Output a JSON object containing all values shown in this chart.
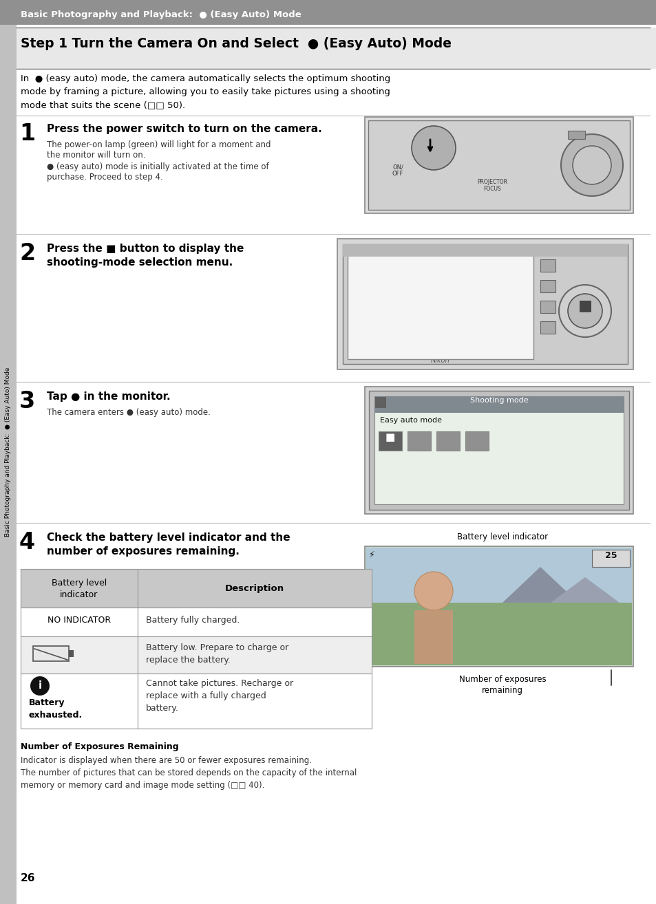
{
  "bg_color": "#ffffff",
  "page_bg": "#f0f0f0",
  "header_bg": "#888888",
  "header_text_color": "#ffffff",
  "header_text": "Basic Photography and Playback:  ● (Easy Auto) Mode",
  "title_text": "Step 1 Turn the Camera On and Select  ● (Easy Auto) Mode",
  "intro_lines": [
    "In  ● (easy auto) mode, the camera automatically selects the optimum shooting",
    "mode by framing a picture, allowing you to easily take pictures using a shooting",
    "mode that suits the scene (□□ 50)."
  ],
  "step1_num": "1",
  "step1_title": "Press the power switch to turn on the camera.",
  "step1_body1a": "The power-on lamp (green) will light for a moment and",
  "step1_body1b": "the monitor will turn on.",
  "step1_body2a": "● (easy auto) mode is initially activated at the time of",
  "step1_body2b": "purchase. Proceed to step 4.",
  "step2_num": "2",
  "step2_title_line1": "Press the ■ button to display the",
  "step2_title_line2": "shooting-mode selection menu.",
  "step3_num": "3",
  "step3_title": "Tap ● in the monitor.",
  "step3_body": "The camera enters ● (easy auto) mode.",
  "step4_num": "4",
  "step4_title_line1": "Check the battery level indicator and the",
  "step4_title_line2": "number of exposures remaining.",
  "battery_label": "Battery level indicator",
  "table_col1_header": "Battery level\nindicator",
  "table_col2_header": "Description",
  "table_row1_col1": "NO INDICATOR",
  "table_row1_col2": "Battery fully charged.",
  "table_row2_col2a": "Battery low. Prepare to charge or",
  "table_row2_col2b": "replace the battery.",
  "table_row3_col1b": "Battery",
  "table_row3_col1c": "exhausted.",
  "table_row3_col2a": "Cannot take pictures. Recharge or",
  "table_row3_col2b": "replace with a fully charged",
  "table_row3_col2c": "battery.",
  "exposures_label_line1": "Number of exposures",
  "exposures_label_line2": "remaining",
  "note_heading": "Number of Exposures Remaining",
  "note_line1": "Indicator is displayed when there are 50 or fewer exposures remaining.",
  "note_line2": "The number of pictures that can be stored depends on the capacity of the internal",
  "note_line3": "memory or memory card and image mode setting (□□ 40).",
  "page_num": "26",
  "sidebar_text": "Basic Photography and Playback:  ● (Easy Auto) Mode",
  "header_bg_color": "#909090",
  "title_bg_color": "#e8e8e8",
  "sep_color": "#aaaaaa",
  "step_sep_color": "#bbbbbb",
  "table_hdr_bg": "#c8c8c8",
  "table_row_alt": "#eeeeee",
  "table_border_color": "#999999",
  "sidebar_bg": "#c0c0c0"
}
